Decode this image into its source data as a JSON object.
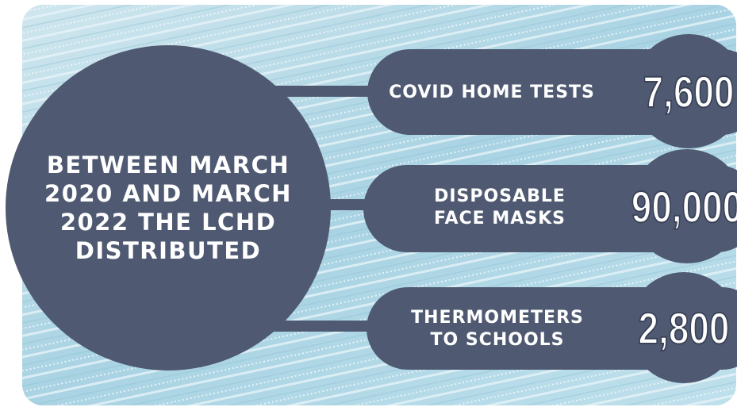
{
  "intro": {
    "lines": [
      "BETWEEN MARCH",
      "2020 AND MARCH",
      "2022 THE LCHD",
      "DISTRIBUTED"
    ]
  },
  "items": [
    {
      "label_lines": [
        "COVID HOME TESTS"
      ],
      "number": "7,600"
    },
    {
      "label_lines": [
        "DISPOSABLE",
        "FACE MASKS"
      ],
      "number": "90,000"
    },
    {
      "label_lines": [
        "THERMOMETERS",
        "TO SCHOOLS"
      ],
      "number": "2,800"
    }
  ]
}
